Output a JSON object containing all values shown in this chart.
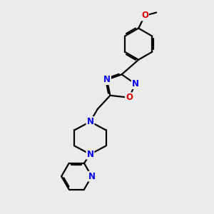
{
  "bg_color": "#ebebeb",
  "bond_color": "#000000",
  "bond_width": 1.6,
  "atom_colors": {
    "N": "#0000ee",
    "O": "#dd0000",
    "C": "#000000"
  },
  "font_size_atom": 8.5,
  "fig_size": [
    3.0,
    3.0
  ],
  "dpi": 100
}
